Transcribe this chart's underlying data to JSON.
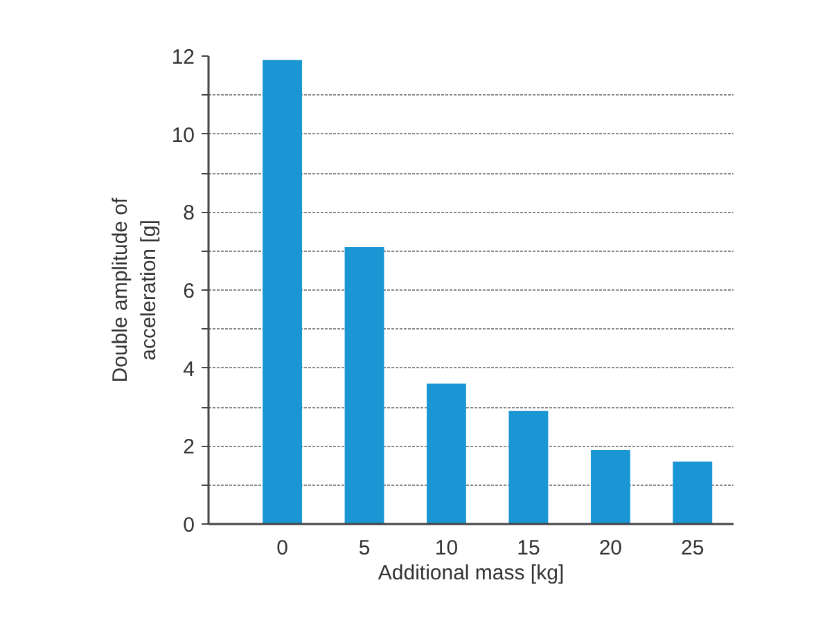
{
  "chart_data": {
    "type": "bar",
    "xlabel": "Additional mass [kg]",
    "ylabel": "Double amplitude of\nacceleration [g]",
    "categories": [
      "0",
      "5",
      "10",
      "15",
      "20",
      "25"
    ],
    "values": [
      11.9,
      7.1,
      3.6,
      2.9,
      1.9,
      1.6
    ],
    "color": "#1a96d4",
    "ylim": [
      0,
      12
    ],
    "yticks": [
      0,
      {
        "value": 1,
        "label": null
      },
      2,
      {
        "value": 3,
        "label": null
      },
      4,
      {
        "value": 5,
        "label": null
      },
      6,
      {
        "value": 7,
        "label": null
      },
      8,
      {
        "value": 9,
        "label": null
      },
      10,
      {
        "value": 11,
        "label": null
      },
      12
    ],
    "grid": "y"
  }
}
